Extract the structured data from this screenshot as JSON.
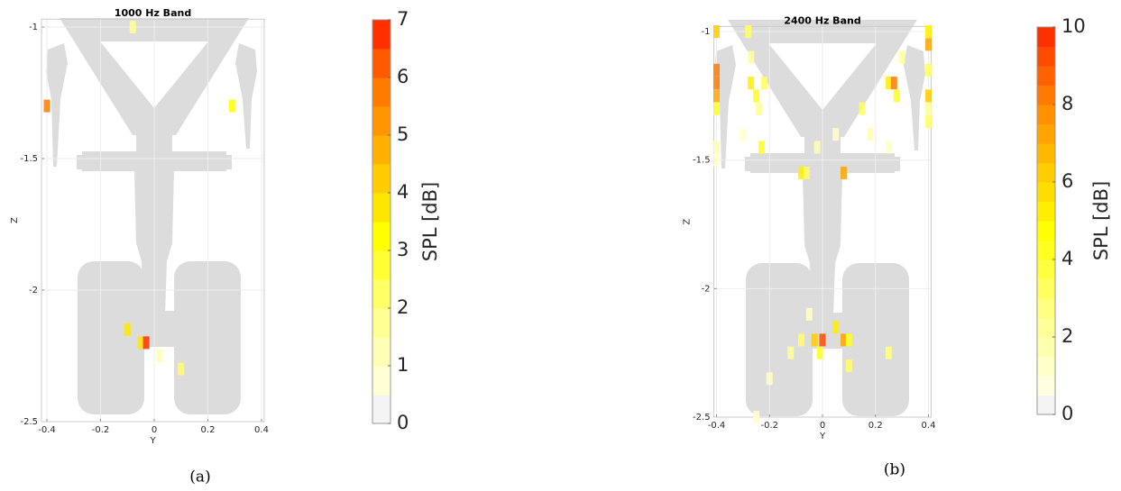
{
  "chart_data": [
    {
      "type": "heatmap",
      "title": "1000 Hz Band",
      "x_label": "Y",
      "y_label": "Z",
      "caption": "(a)",
      "x": [
        -0.08,
        -0.4,
        0.29,
        -0.1,
        -0.05,
        -0.03,
        0.02,
        0.1
      ],
      "y": [
        -1.0,
        -1.3,
        -1.3,
        -2.15,
        -2.2,
        -2.2,
        -2.25,
        -2.3
      ],
      "values": [
        1.5,
        5.5,
        3,
        3.5,
        3.5,
        6.5,
        1,
        2
      ],
      "xlim": [
        -0.42,
        0.41
      ],
      "ylim": [
        -2.5,
        -0.97
      ],
      "xticks": [
        -0.4,
        -0.2,
        0,
        0.2,
        0.4
      ],
      "yticks": [
        -2.5,
        -2,
        -1.5,
        -1
      ],
      "grid": true,
      "colorbar": {
        "label": "SPL [dB]",
        "clim": [
          0,
          7
        ],
        "ticks": [
          0,
          1,
          2,
          3,
          4,
          5,
          6,
          7
        ],
        "colors": [
          "#f4f4f4",
          "#ffffd2",
          "#ffffb4",
          "#ffff94",
          "#ffff66",
          "#ffff33",
          "#ffff00",
          "#ffe600",
          "#ffcc00",
          "#ffb000",
          "#ff9500",
          "#ff7a00",
          "#ff5a00",
          "#ff3000"
        ]
      }
    },
    {
      "type": "heatmap",
      "title": "2400 Hz Band",
      "x_label": "Y",
      "y_label": "Z",
      "caption": "(b)",
      "x": [
        -0.4,
        -0.4,
        -0.4,
        -0.4,
        -0.4,
        -0.4,
        -0.4,
        0.4,
        0.4,
        0.4,
        0.4,
        0.4,
        0.4,
        -0.28,
        -0.27,
        -0.27,
        -0.25,
        -0.22,
        -0.24,
        -0.23,
        -0.3,
        0.25,
        0.27,
        0.28,
        0.3,
        0.15,
        0.18,
        0.25,
        -0.08,
        -0.06,
        0.08,
        -0.02,
        0.05,
        -0.05,
        -0.08,
        -0.03,
        0,
        -0.01,
        0.05,
        0.08,
        0.1,
        0.1,
        -0.12,
        0.25,
        -0.2,
        -0.25
      ],
      "y": [
        -1.0,
        -1.15,
        -1.2,
        -1.25,
        -1.3,
        -1.45,
        -1.5,
        -1.0,
        -1.05,
        -1.15,
        -1.25,
        -1.3,
        -1.35,
        -1.0,
        -1.1,
        -1.2,
        -1.25,
        -1.2,
        -1.3,
        -1.45,
        -1.4,
        -1.2,
        -1.2,
        -1.25,
        -1.1,
        -1.3,
        -1.4,
        -1.45,
        -1.55,
        -1.55,
        -1.55,
        -1.45,
        -1.4,
        -2.1,
        -2.2,
        -2.2,
        -2.2,
        -2.25,
        -2.15,
        -2.2,
        -2.2,
        -2.3,
        -2.25,
        -2.25,
        -2.35,
        -2.5
      ],
      "values": [
        6,
        8,
        8,
        7,
        4,
        1.5,
        1,
        5,
        7,
        3,
        6,
        2,
        3,
        3,
        2,
        5,
        4,
        3,
        2,
        4,
        1,
        5,
        8,
        4,
        2,
        3,
        1.5,
        1,
        5,
        3,
        7,
        1.5,
        1,
        1,
        3,
        6,
        9,
        4,
        5,
        7,
        4,
        3,
        2,
        2.5,
        1,
        1
      ],
      "xlim": [
        -0.41,
        0.41
      ],
      "ylim": [
        -2.5,
        -0.98
      ],
      "xticks": [
        -0.4,
        -0.2,
        0,
        0.2,
        0.4
      ],
      "yticks": [
        -2.5,
        -2,
        -1.5,
        -1
      ],
      "grid": true,
      "colorbar": {
        "label": "SPL [dB]",
        "clim": [
          0,
          10
        ],
        "ticks": [
          0,
          2,
          4,
          6,
          8,
          10
        ],
        "colors": [
          "#f4f4f4",
          "#ffffe0",
          "#ffffc8",
          "#ffffb0",
          "#ffff98",
          "#ffff80",
          "#ffff60",
          "#ffff40",
          "#ffff20",
          "#ffff00",
          "#ffee00",
          "#ffdd00",
          "#ffcc00",
          "#ffb800",
          "#ffa400",
          "#ff9000",
          "#ff7a00",
          "#ff6200",
          "#ff4a00",
          "#ff3000"
        ]
      }
    }
  ]
}
